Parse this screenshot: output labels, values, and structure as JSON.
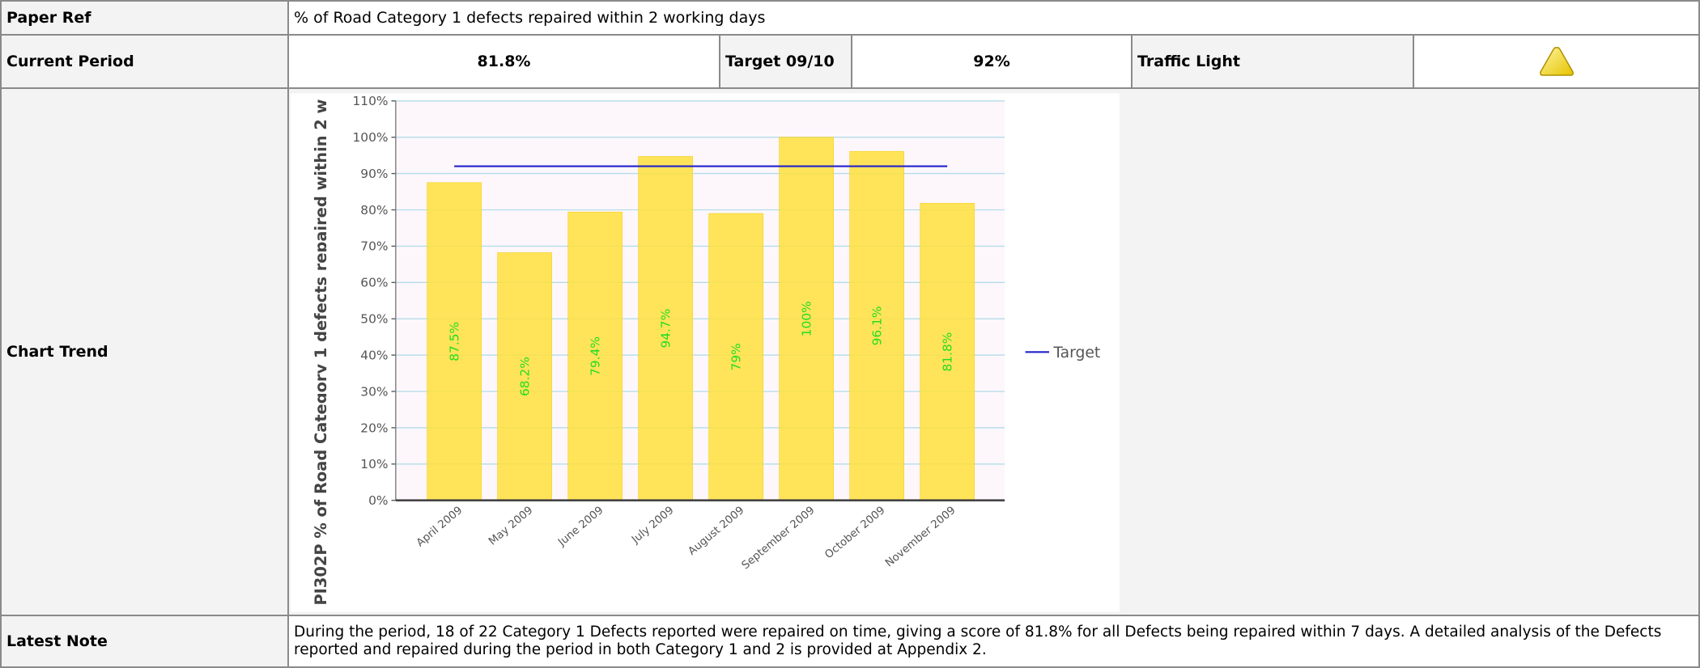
{
  "table": {
    "rows": [
      [
        "Paper Ref",
        "% of Road Category 1 defects repaired within 2 working days"
      ],
      [
        "Current Period",
        "81.8%",
        "Target 09/10",
        "92%",
        "Traffic Light"
      ],
      [
        "Chart Trend"
      ],
      [
        "Latest Note",
        "During the period, 18 of 22 Category 1 Defects reported were repaired on time, giving a score of 81.8% for all Defects being repaired within 7 days. A detailed analysis of the Defects reported and repaired during the period in both Category 1 and 2 is provided at Appendix 2."
      ]
    ]
  },
  "chart_data": {
    "type": "bar",
    "y_label": "PI302P % of Road Category 1 defects repaired within 2 w",
    "categories": [
      "April 2009",
      "May 2009",
      "June 2009",
      "July 2009",
      "August 2009",
      "September 2009",
      "October 2009",
      "November 2009"
    ],
    "values": [
      87.5,
      68.2,
      79.4,
      94.7,
      79,
      100,
      96.1,
      81.8
    ],
    "value_labels": [
      "87.5%",
      "68.2%",
      "79.4%",
      "94.7%",
      "79%",
      "100%",
      "96.1%",
      "81.8%"
    ],
    "color": "#ffe03c",
    "label_color": "#22dd22",
    "series": [
      {
        "name": "Target",
        "type": "line",
        "color": "#2222cc",
        "values": [
          92,
          92,
          92,
          92,
          92,
          92,
          92,
          92
        ]
      }
    ],
    "ylim": [
      0,
      110
    ],
    "yticks": [
      {
        "value": 0,
        "label": "0%"
      },
      {
        "value": 10,
        "label": "10%"
      },
      {
        "value": 20,
        "label": "20%"
      },
      {
        "value": 30,
        "label": "30%"
      },
      {
        "value": 40,
        "label": "40%"
      },
      {
        "value": 50,
        "label": "50%"
      },
      {
        "value": 60,
        "label": "60%"
      },
      {
        "value": 70,
        "label": "70%"
      },
      {
        "value": 80,
        "label": "80%"
      },
      {
        "value": 90,
        "label": "90%"
      },
      {
        "value": 100,
        "label": "100%"
      },
      {
        "value": 110,
        "label": "110%"
      }
    ],
    "grid": true,
    "legend": "right"
  }
}
